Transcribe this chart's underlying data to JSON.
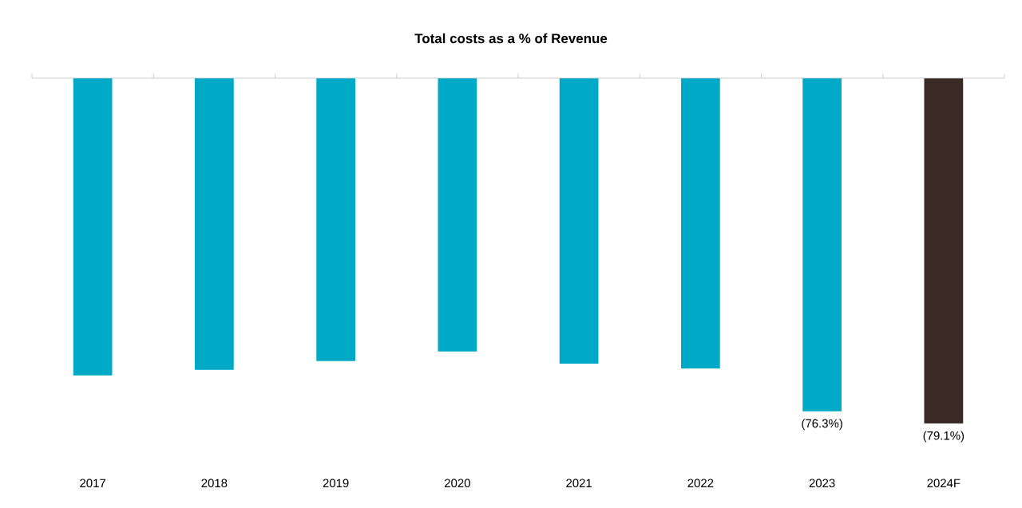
{
  "chart_data": {
    "type": "bar",
    "title": "Total costs as a % of Revenue",
    "categories": [
      "2017",
      "2018",
      "2019",
      "2020",
      "2021",
      "2022",
      "2023",
      "2024F"
    ],
    "values": [
      -68.1,
      -66.8,
      -64.8,
      -62.6,
      -65.4,
      -66.5,
      -76.3,
      -79.1
    ],
    "colors": [
      "#00aac7",
      "#00aac7",
      "#00aac7",
      "#00aac7",
      "#00aac7",
      "#00aac7",
      "#00aac7",
      "#3a2a26"
    ],
    "value_labels": [
      null,
      null,
      null,
      null,
      null,
      null,
      "(76.3%)",
      "(79.1%)"
    ]
  }
}
